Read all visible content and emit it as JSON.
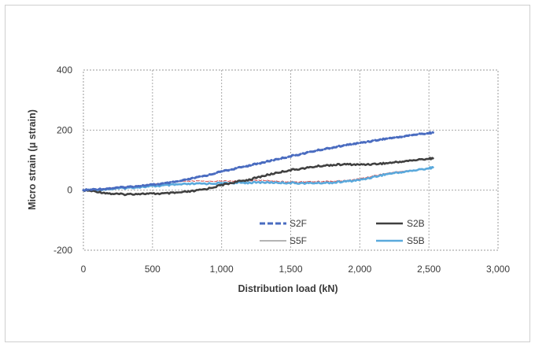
{
  "chart_data": {
    "type": "line",
    "title": "",
    "xlabel": "Distribution load (kN)",
    "ylabel": "Micro strain (μ strain)",
    "xlim": [
      0,
      3000
    ],
    "ylim": [
      -200,
      400
    ],
    "x_ticks": [
      0,
      500,
      1000,
      1500,
      2000,
      2500,
      3000
    ],
    "x_tick_labels": [
      "0",
      "500",
      "1,000",
      "1,500",
      "2,000",
      "2,500",
      "3,000"
    ],
    "y_ticks": [
      -200,
      0,
      200,
      400
    ],
    "y_tick_labels": [
      "-200",
      "0",
      "200",
      "400"
    ],
    "grid": true,
    "legend_position": "inside-bottom-right",
    "series": [
      {
        "name": "S2F",
        "color": "#4a6cc0",
        "style": "dashed-thick",
        "x": [
          0,
          100,
          200,
          300,
          400,
          500,
          600,
          700,
          800,
          900,
          1000,
          1100,
          1200,
          1300,
          1400,
          1500,
          1600,
          1700,
          1800,
          1900,
          2000,
          2100,
          2200,
          2300,
          2400,
          2500,
          2530
        ],
        "y": [
          0,
          3,
          6,
          10,
          14,
          18,
          23,
          30,
          40,
          50,
          62,
          72,
          82,
          92,
          103,
          113,
          123,
          133,
          142,
          150,
          157,
          165,
          172,
          178,
          185,
          190,
          192
        ]
      },
      {
        "name": "S2B",
        "color": "#404040",
        "style": "solid-thick",
        "x": [
          0,
          100,
          200,
          300,
          400,
          500,
          600,
          700,
          800,
          900,
          1000,
          1100,
          1200,
          1300,
          1400,
          1500,
          1600,
          1700,
          1800,
          1900,
          2000,
          2100,
          2200,
          2300,
          2400,
          2500,
          2530
        ],
        "y": [
          0,
          -5,
          -12,
          -14,
          -12,
          -12,
          -11,
          -8,
          -3,
          5,
          17,
          27,
          35,
          47,
          58,
          67,
          73,
          80,
          84,
          86,
          85,
          87,
          90,
          95,
          100,
          105,
          106
        ]
      },
      {
        "name": "S5F",
        "color": "#d24a4a",
        "style": "solid-thin",
        "x": [
          0,
          100,
          200,
          300,
          400,
          500,
          600,
          700,
          800,
          900,
          1000,
          1100,
          1200,
          1300,
          1400,
          1500,
          1600,
          1700,
          1800,
          1900,
          2000,
          2100,
          2200,
          2300,
          2400,
          2500,
          2530
        ],
        "y": [
          0,
          4,
          8,
          12,
          15,
          20,
          25,
          28,
          30,
          30,
          30,
          31,
          32,
          33,
          30,
          28,
          28,
          29,
          30,
          32,
          38,
          48,
          57,
          63,
          67,
          72,
          74
        ]
      },
      {
        "name": "S5B",
        "color": "#5aa9dc",
        "style": "solid-thick",
        "x": [
          0,
          100,
          200,
          300,
          400,
          500,
          600,
          700,
          800,
          900,
          1000,
          1100,
          1200,
          1300,
          1400,
          1500,
          1600,
          1700,
          1800,
          1900,
          2000,
          2100,
          2200,
          2300,
          2400,
          2500,
          2530
        ],
        "y": [
          0,
          2,
          4,
          7,
          10,
          13,
          16,
          19,
          21,
          22,
          23,
          24,
          25,
          26,
          25,
          24,
          23,
          24,
          25,
          29,
          34,
          44,
          54,
          60,
          66,
          73,
          76
        ]
      }
    ]
  }
}
